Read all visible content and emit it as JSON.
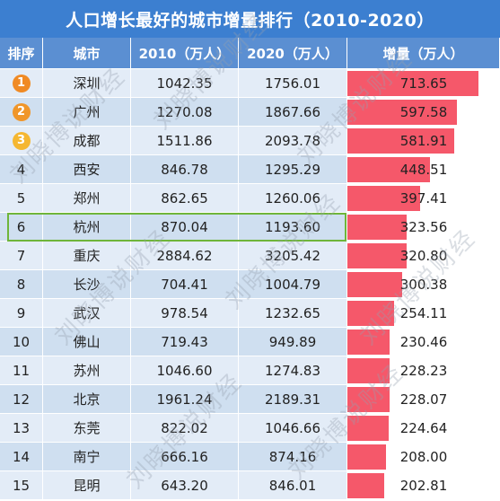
{
  "title": "人口增长最好的城市增量排行（2010-2020）",
  "watermark": "刘晓博说财经",
  "colors": {
    "title_bg": "#3c7fd0",
    "header_bg": "#5b8fd2",
    "row_a": "#e3ecf7",
    "row_b": "#cfdff0",
    "bar": "#f5586a",
    "highlight": "#6fb53a",
    "medal_1": "#f08a24",
    "medal_2": "#f0962a",
    "medal_3": "#f5b731"
  },
  "columns": [
    "排序",
    "城市",
    "2010（万人）",
    "2020（万人）",
    "增量（万人）"
  ],
  "chart_data": {
    "type": "table",
    "title": "人口增长最好的城市增量排行（2010-2020）",
    "highlighted_rank": 6,
    "bar_max": 713.65,
    "rows": [
      {
        "rank": "1",
        "city": "深圳",
        "y2010": "1042.35",
        "y2020": "1756.01",
        "increase": "713.65",
        "increase_value": 713.65
      },
      {
        "rank": "2",
        "city": "广州",
        "y2010": "1270.08",
        "y2020": "1867.66",
        "increase": "597.58",
        "increase_value": 597.58
      },
      {
        "rank": "3",
        "city": "成都",
        "y2010": "1511.86",
        "y2020": "2093.78",
        "increase": "581.91",
        "increase_value": 581.91
      },
      {
        "rank": "4",
        "city": "西安",
        "y2010": "846.78",
        "y2020": "1295.29",
        "increase": "448.51",
        "increase_value": 448.51
      },
      {
        "rank": "5",
        "city": "郑州",
        "y2010": "862.65",
        "y2020": "1260.06",
        "increase": "397.41",
        "increase_value": 397.41
      },
      {
        "rank": "6",
        "city": "杭州",
        "y2010": "870.04",
        "y2020": "1193.60",
        "increase": "323.56",
        "increase_value": 323.56
      },
      {
        "rank": "7",
        "city": "重庆",
        "y2010": "2884.62",
        "y2020": "3205.42",
        "increase": "320.80",
        "increase_value": 320.8
      },
      {
        "rank": "8",
        "city": "长沙",
        "y2010": "704.41",
        "y2020": "1004.79",
        "increase": "300.38",
        "increase_value": 300.38
      },
      {
        "rank": "9",
        "city": "武汉",
        "y2010": "978.54",
        "y2020": "1232.65",
        "increase": "254.11",
        "increase_value": 254.11
      },
      {
        "rank": "10",
        "city": "佛山",
        "y2010": "719.43",
        "y2020": "949.89",
        "increase": "230.46",
        "increase_value": 230.46
      },
      {
        "rank": "11",
        "city": "苏州",
        "y2010": "1046.60",
        "y2020": "1274.83",
        "increase": "228.23",
        "increase_value": 228.23
      },
      {
        "rank": "12",
        "city": "北京",
        "y2010": "1961.24",
        "y2020": "2189.31",
        "increase": "228.07",
        "increase_value": 228.07
      },
      {
        "rank": "13",
        "city": "东莞",
        "y2010": "822.02",
        "y2020": "1046.66",
        "increase": "224.64",
        "increase_value": 224.64
      },
      {
        "rank": "14",
        "city": "南宁",
        "y2010": "666.16",
        "y2020": "874.16",
        "increase": "208.00",
        "increase_value": 208.0
      },
      {
        "rank": "15",
        "city": "昆明",
        "y2010": "643.20",
        "y2020": "846.01",
        "increase": "202.81",
        "increase_value": 202.81
      }
    ]
  }
}
